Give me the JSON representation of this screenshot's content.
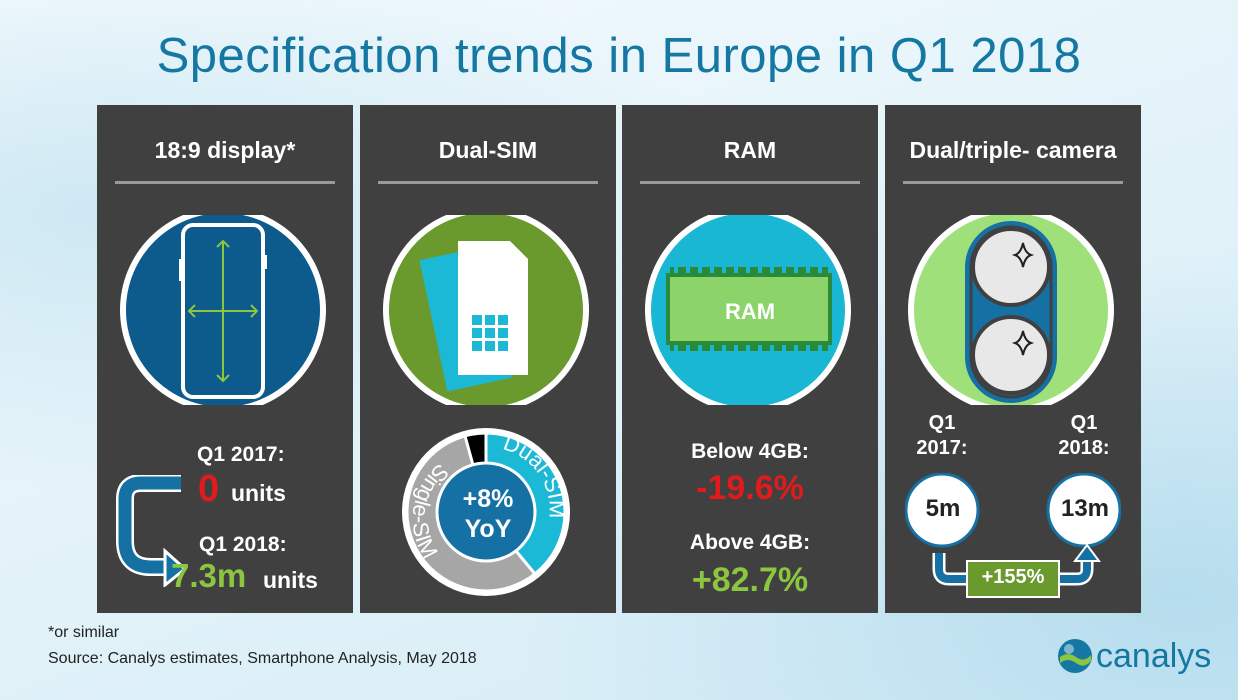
{
  "title": "Specification trends in Europe in Q1 2018",
  "colors": {
    "title": "#1478a3",
    "panel_bg": "#404040",
    "display_circle": "#0d5a8c",
    "sim_circle": "#6a9a2e",
    "ram_circle": "#1ab7d4",
    "camera_circle": "#9fe07a",
    "green_text": "#8cc63f",
    "red_text": "#e11b1b",
    "dual_sim_segment": "#1cb9d6",
    "single_sim_segment": "#a6a6a6"
  },
  "panels": [
    {
      "title": "18:9 display*",
      "icon": "phone-display-icon",
      "q1_2017_label": "Q1 2017:",
      "q1_2017_value": "0",
      "q1_2017_unit": "units",
      "q1_2018_label": "Q1 2018:",
      "q1_2018_value": "7.3m",
      "q1_2018_unit": "units"
    },
    {
      "title": "Dual-SIM",
      "icon": "sim-card-icon",
      "donut_center": "+8%",
      "donut_center_sub": "YoY",
      "dual_label": "Dual-SIM",
      "single_label": "Single-SIM",
      "icon_donut": "dual-sim-share-donut-icon"
    },
    {
      "title": "RAM",
      "icon": "ram-chip-icon",
      "chip_label": "RAM",
      "below_label": "Below 4GB:",
      "below_value": "-19.6%",
      "above_label": "Above 4GB:",
      "above_value": "+82.7%"
    },
    {
      "title": "Dual/triple- camera",
      "icon": "dual-camera-icon",
      "q1_2017_label_line1": "Q1",
      "q1_2017_label_line2": "2017:",
      "q1_2018_label_line1": "Q1",
      "q1_2018_label_line2": "2018:",
      "value_2017": "5m",
      "value_2018": "13m",
      "growth": "+155%"
    }
  ],
  "footnotes": {
    "note": "*or similar",
    "source": "Source: Canalys estimates, Smartphone Analysis, May 2018"
  },
  "logo": {
    "text": "canalys",
    "icon": "canalys-globe-icon"
  }
}
